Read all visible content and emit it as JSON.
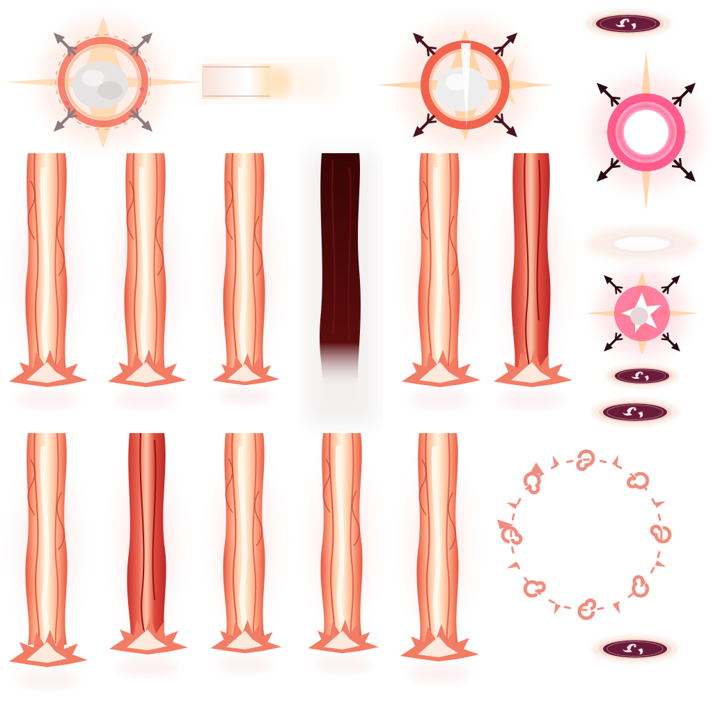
{
  "sprite_sheet": {
    "frames": [
      {
        "name": "burst-frame-1",
        "kind": "explosion-burst"
      },
      {
        "name": "streak-frame",
        "kind": "light-streak"
      },
      {
        "name": "burst-frame-2",
        "kind": "explosion-burst"
      },
      {
        "name": "seal-emblem-top",
        "kind": "tomoe-seal"
      },
      {
        "name": "burst-frame-3",
        "kind": "explosion-burst"
      },
      {
        "name": "seal-ghost",
        "kind": "tomoe-seal-faded"
      },
      {
        "name": "burst-frame-4",
        "kind": "explosion-burst"
      },
      {
        "name": "seal-emblem-mid-1",
        "kind": "tomoe-seal"
      },
      {
        "name": "seal-emblem-mid-2",
        "kind": "tomoe-seal"
      },
      {
        "name": "fire-ring",
        "kind": "ornamental-ring"
      },
      {
        "name": "seal-emblem-bottom",
        "kind": "tomoe-seal"
      }
    ],
    "pillar_rows": [
      {
        "name": "pillar-row-1",
        "variants": [
          "flame",
          "flame",
          "flame",
          "shadow",
          "flame",
          "flame-dark"
        ]
      },
      {
        "name": "pillar-row-2",
        "variants": [
          "flame",
          "flame-dark",
          "flame",
          "flame",
          "flame"
        ]
      }
    ],
    "colors": {
      "flame_outer": "#f07a62",
      "flame_mid": "#ffb08a",
      "flame_core": "#fff4d6",
      "flame_glow": "#ffd0c6",
      "shadow_pillar": "#4a0808",
      "seal_dark": "#6b1b3a",
      "seal_rim": "#f3d6c8",
      "ring_color": "#f08d7e",
      "burst_pink": "#ff5a86"
    }
  }
}
